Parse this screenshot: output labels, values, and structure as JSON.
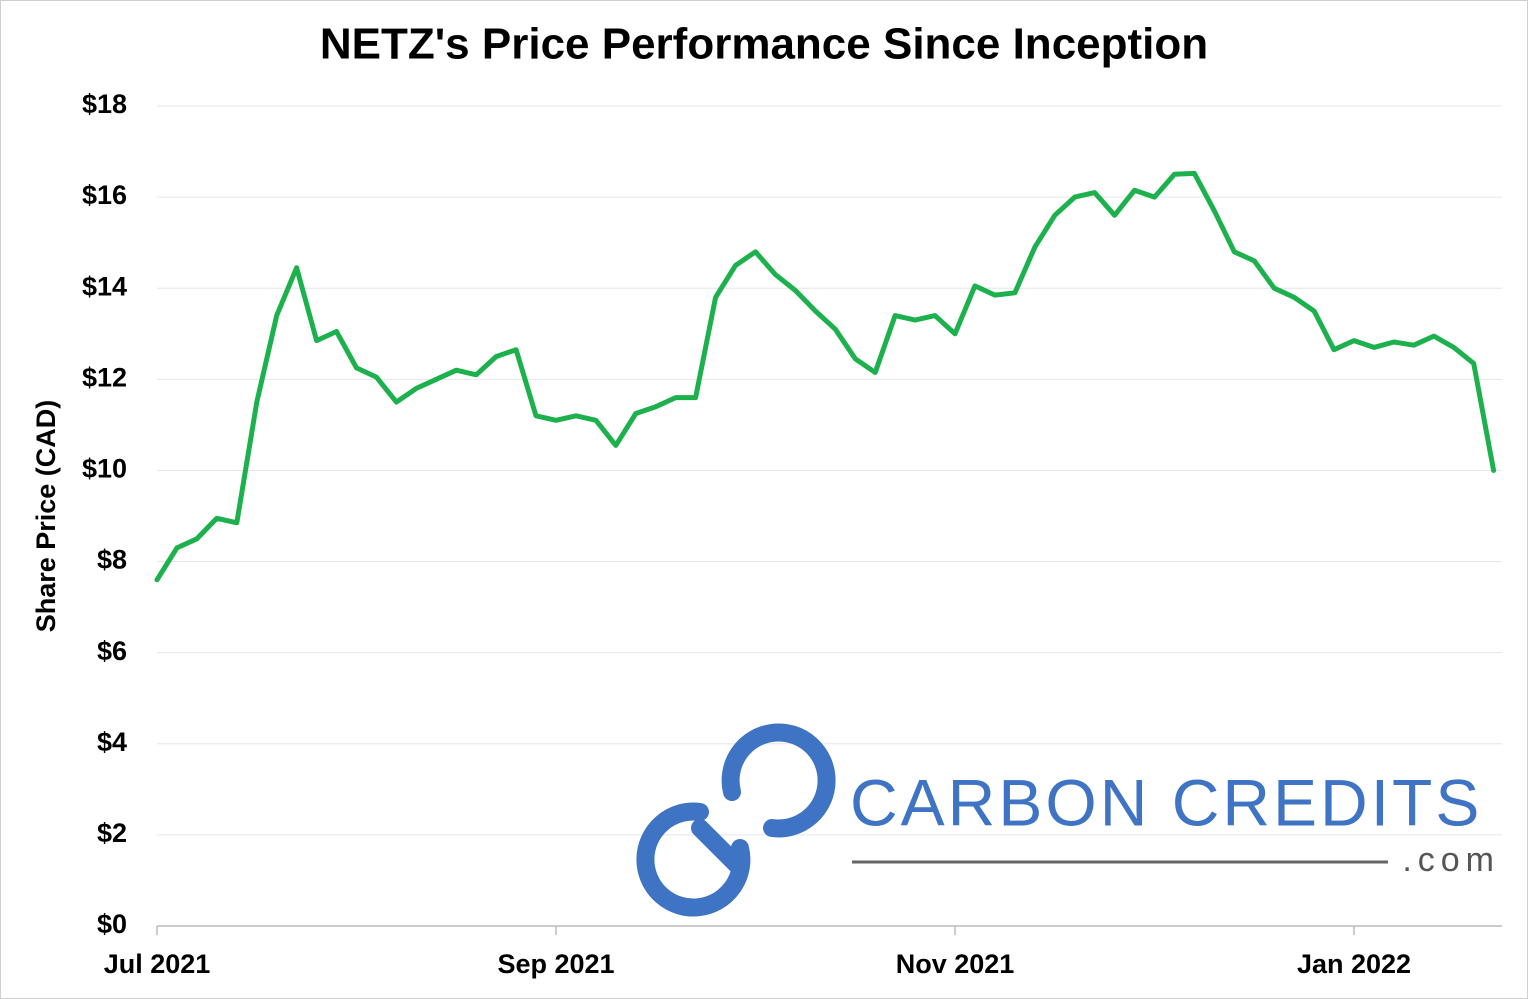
{
  "chart_data": {
    "type": "line",
    "title": "NETZ's Price Performance Since Inception",
    "y_label": "Share Price (CAD)",
    "logo": {
      "name": "CARBON CREDITS",
      "suffix": ".com"
    },
    "categories": [
      "Jul 2021",
      null,
      null,
      null,
      null,
      null,
      null,
      null,
      null,
      null,
      null,
      null,
      null,
      null,
      null,
      null,
      null,
      null,
      null,
      null,
      "Sep 2021",
      null,
      null,
      null,
      null,
      null,
      null,
      null,
      null,
      null,
      null,
      null,
      null,
      null,
      null,
      null,
      null,
      null,
      null,
      null,
      "Nov 2021",
      null,
      null,
      null,
      null,
      null,
      null,
      null,
      null,
      null,
      null,
      null,
      null,
      null,
      null,
      null,
      null,
      null,
      null,
      null,
      "Jan 2022",
      null,
      null,
      null,
      null,
      null,
      null,
      null
    ],
    "series": [
      {
        "name": "NETZ",
        "color": "#1db14e",
        "values": [
          7.6,
          8.3,
          8.5,
          8.95,
          8.85,
          11.5,
          13.4,
          14.45,
          12.85,
          13.05,
          12.25,
          12.05,
          11.5,
          11.8,
          12.0,
          12.2,
          12.1,
          12.5,
          12.65,
          11.2,
          11.1,
          11.2,
          11.1,
          10.55,
          11.25,
          11.4,
          11.6,
          11.6,
          13.8,
          14.5,
          14.8,
          14.3,
          13.95,
          13.5,
          13.1,
          12.45,
          12.15,
          13.4,
          13.3,
          13.4,
          13.0,
          14.05,
          13.85,
          13.9,
          14.9,
          15.6,
          16.0,
          16.1,
          15.6,
          16.15,
          16.0,
          16.5,
          16.52,
          15.7,
          14.8,
          14.6,
          14.0,
          13.8,
          13.5,
          12.65,
          12.85,
          12.7,
          12.82,
          12.75,
          12.95,
          12.7,
          12.35,
          10.0
        ]
      }
    ],
    "ylim": [
      0,
      18
    ],
    "yticks": [
      {
        "value": 0,
        "label": "$0"
      },
      {
        "value": 2,
        "label": "$2"
      },
      {
        "value": 4,
        "label": "$4"
      },
      {
        "value": 6,
        "label": "$6"
      },
      {
        "value": 8,
        "label": "$8"
      },
      {
        "value": 10,
        "label": "$10"
      },
      {
        "value": 12,
        "label": "$12"
      },
      {
        "value": 14,
        "label": "$14"
      },
      {
        "value": 16,
        "label": "$16"
      },
      {
        "value": 18,
        "label": "$18"
      }
    ],
    "grid": true
  }
}
